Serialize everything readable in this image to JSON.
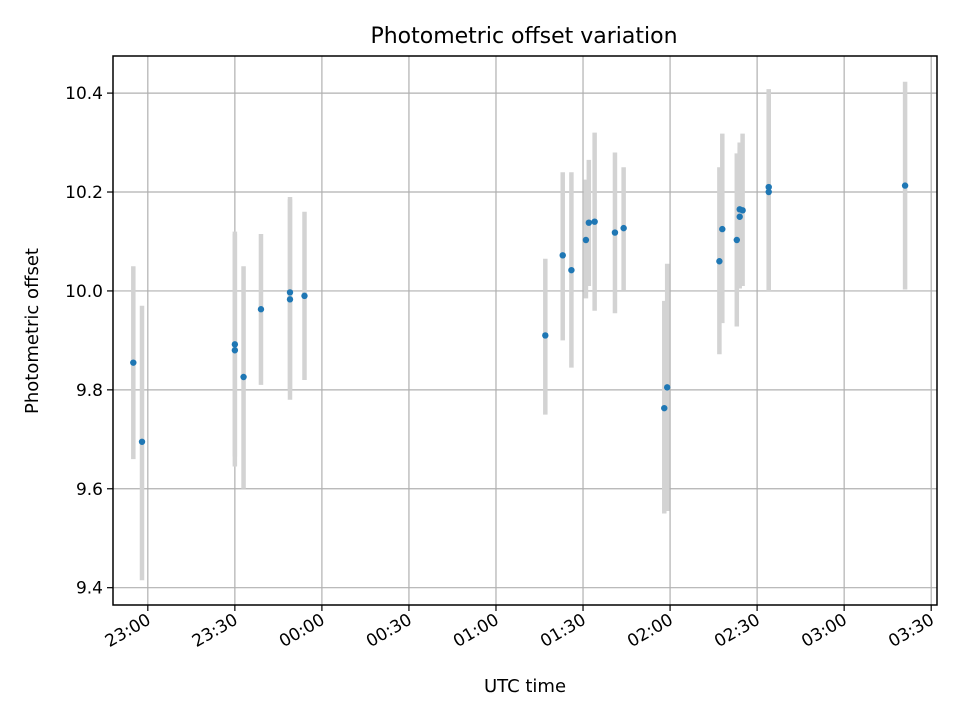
{
  "chart_data": {
    "type": "scatter",
    "title": "Photometric offset variation",
    "xlabel": "UTC time",
    "ylabel": "Photometric offset",
    "x_axis": {
      "kind": "time",
      "range": [
        "22:48",
        "03:32"
      ],
      "ticks": [
        "23:00",
        "23:30",
        "00:00",
        "00:30",
        "01:00",
        "01:30",
        "02:00",
        "02:30",
        "03:00",
        "03:30"
      ]
    },
    "y_axis": {
      "range": [
        9.365,
        10.475
      ],
      "ticks": [
        9.4,
        9.6,
        9.8,
        10.0,
        10.2,
        10.4
      ]
    },
    "grid": true,
    "colors": {
      "points": "#1f77b4",
      "errorbars": "#d3d3d3",
      "grid": "#b0b0b0"
    },
    "points": [
      {
        "x": "22:55",
        "y": 9.855,
        "ylow": 9.66,
        "yhigh": 10.05
      },
      {
        "x": "22:58",
        "y": 9.695,
        "ylow": 9.415,
        "yhigh": 9.97
      },
      {
        "x": "23:30",
        "y": 9.88,
        "ylow": 9.645,
        "yhigh": 10.115
      },
      {
        "x": "23:30",
        "y": 9.892,
        "ylow": 9.665,
        "yhigh": 10.12
      },
      {
        "x": "23:33",
        "y": 9.826,
        "ylow": 9.6,
        "yhigh": 10.05
      },
      {
        "x": "23:39",
        "y": 9.963,
        "ylow": 9.81,
        "yhigh": 10.115
      },
      {
        "x": "23:49",
        "y": 9.997,
        "ylow": 9.8,
        "yhigh": 10.19
      },
      {
        "x": "23:49",
        "y": 9.983,
        "ylow": 9.78,
        "yhigh": 10.185
      },
      {
        "x": "23:54",
        "y": 9.99,
        "ylow": 9.82,
        "yhigh": 10.16
      },
      {
        "x": "01:17",
        "y": 9.91,
        "ylow": 9.75,
        "yhigh": 10.065
      },
      {
        "x": "01:23",
        "y": 10.072,
        "ylow": 9.9,
        "yhigh": 10.24
      },
      {
        "x": "01:26",
        "y": 10.042,
        "ylow": 9.845,
        "yhigh": 10.24
      },
      {
        "x": "01:31",
        "y": 10.103,
        "ylow": 9.985,
        "yhigh": 10.225
      },
      {
        "x": "01:32",
        "y": 10.138,
        "ylow": 10.01,
        "yhigh": 10.265
      },
      {
        "x": "01:34",
        "y": 10.14,
        "ylow": 9.96,
        "yhigh": 10.32
      },
      {
        "x": "01:41",
        "y": 10.118,
        "ylow": 9.955,
        "yhigh": 10.28
      },
      {
        "x": "01:44",
        "y": 10.127,
        "ylow": 10.0,
        "yhigh": 10.25
      },
      {
        "x": "01:58",
        "y": 9.763,
        "ylow": 9.55,
        "yhigh": 9.98
      },
      {
        "x": "01:59",
        "y": 9.805,
        "ylow": 9.555,
        "yhigh": 10.055
      },
      {
        "x": "02:17",
        "y": 10.06,
        "ylow": 9.872,
        "yhigh": 10.25
      },
      {
        "x": "02:18",
        "y": 10.125,
        "ylow": 9.935,
        "yhigh": 10.318
      },
      {
        "x": "02:23",
        "y": 10.103,
        "ylow": 9.928,
        "yhigh": 10.278
      },
      {
        "x": "02:24",
        "y": 10.165,
        "ylow": 10.005,
        "yhigh": 10.3
      },
      {
        "x": "02:24",
        "y": 10.15,
        "ylow": 10.01,
        "yhigh": 10.29
      },
      {
        "x": "02:25",
        "y": 10.163,
        "ylow": 10.01,
        "yhigh": 10.318
      },
      {
        "x": "02:34",
        "y": 10.21,
        "ylow": 10.0,
        "yhigh": 10.405
      },
      {
        "x": "02:34",
        "y": 10.2,
        "ylow": 10.0,
        "yhigh": 10.408
      },
      {
        "x": "03:21",
        "y": 10.213,
        "ylow": 10.003,
        "yhigh": 10.423
      }
    ]
  }
}
